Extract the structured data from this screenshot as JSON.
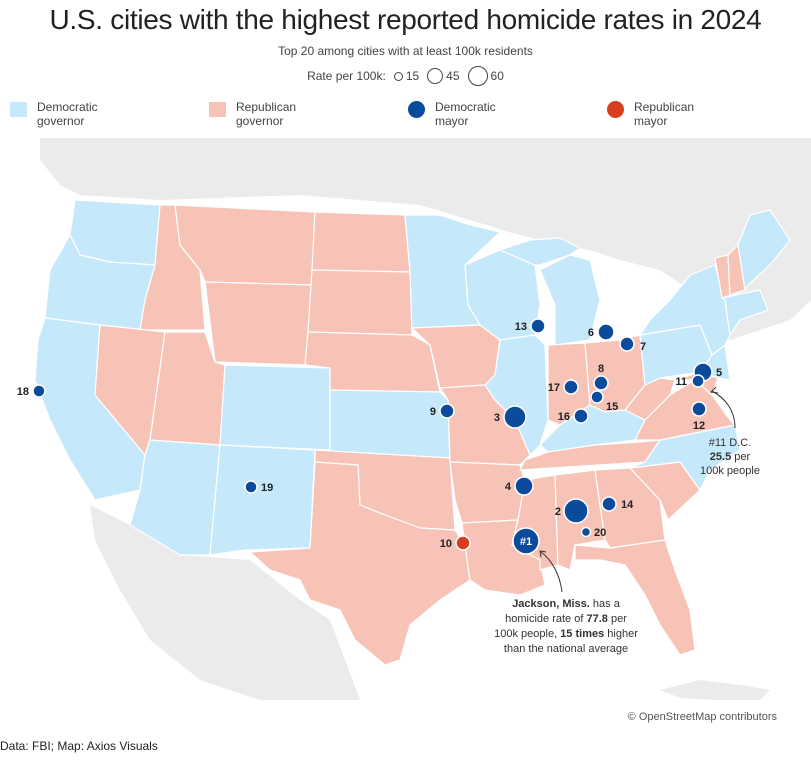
{
  "title": "U.S. cities with the highest reported homicide rates in 2024",
  "subtitle": "Top 20 among cities with at least 100k residents",
  "size_legend": {
    "label": "Rate per 100k:",
    "items": [
      {
        "value": 15,
        "label": "15"
      },
      {
        "value": 45,
        "label": "45"
      },
      {
        "value": 60,
        "label": "60"
      }
    ]
  },
  "legend": [
    {
      "kind": "swatch",
      "color": "#c6e8fb",
      "line1": "Democratic",
      "line2": "governor"
    },
    {
      "kind": "swatch",
      "color": "#f7c3b7",
      "line1": "Republican",
      "line2": "governor"
    },
    {
      "kind": "dot",
      "color": "#0a4b9c",
      "line1": "Democratic",
      "line2": "mayor"
    },
    {
      "kind": "dot",
      "color": "#d63e1f",
      "line1": "Republican",
      "line2": "mayor"
    }
  ],
  "colors": {
    "dem_governor": "#c6e8fb",
    "rep_governor": "#f7c3b7",
    "dem_mayor": "#0a4b9c",
    "rep_mayor": "#d63e1f",
    "land": "#ebebeb"
  },
  "markers": [
    {
      "rank": "#1",
      "mayor": "dem"
    },
    {
      "rank": "2",
      "mayor": "dem"
    },
    {
      "rank": "3",
      "mayor": "dem"
    },
    {
      "rank": "4",
      "mayor": "dem"
    },
    {
      "rank": "5",
      "mayor": "dem"
    },
    {
      "rank": "6",
      "mayor": "dem"
    },
    {
      "rank": "7",
      "mayor": "dem"
    },
    {
      "rank": "8",
      "mayor": "dem"
    },
    {
      "rank": "9",
      "mayor": "dem"
    },
    {
      "rank": "10",
      "mayor": "rep"
    },
    {
      "rank": "11",
      "mayor": "dem"
    },
    {
      "rank": "12",
      "mayor": "dem"
    },
    {
      "rank": "13",
      "mayor": "dem"
    },
    {
      "rank": "14",
      "mayor": "dem"
    },
    {
      "rank": "15",
      "mayor": "dem"
    },
    {
      "rank": "16",
      "mayor": "dem"
    },
    {
      "rank": "17",
      "mayor": "dem"
    },
    {
      "rank": "18",
      "mayor": "dem"
    },
    {
      "rank": "19",
      "mayor": "dem"
    },
    {
      "rank": "20",
      "mayor": "dem"
    }
  ],
  "annotations": {
    "dc": {
      "line1": "#11 D.C.",
      "line2_value": "25.5",
      "line2_rest": " per",
      "line3": "100k people"
    },
    "jackson": {
      "line1_bold": "Jackson, Miss.",
      "line1_rest": " has a",
      "line2_pre": "homicide rate of ",
      "line2_value": "77.8",
      "line2_post": " per",
      "line3_pre": "100k people, ",
      "line3_bold": "15 times",
      "line3_post": " higher",
      "line4": "than the national average"
    }
  },
  "attribution": "© OpenStreetMap contributors",
  "source": "Data: FBI; Map: Axios Visuals"
}
